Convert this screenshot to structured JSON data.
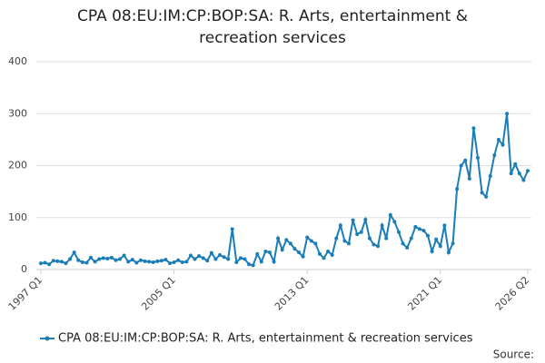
{
  "chart_data": {
    "type": "line",
    "title": "CPA 08:EU:IM:CP:BOP:SA: R. Arts, entertainment & recreation services",
    "source": "Source:",
    "categories": [
      "1997 Q1",
      null,
      null,
      null,
      null,
      null,
      null,
      null,
      null,
      null,
      null,
      null,
      null,
      null,
      null,
      null,
      null,
      null,
      null,
      null,
      null,
      null,
      null,
      null,
      null,
      null,
      null,
      null,
      null,
      null,
      null,
      null,
      "2005 Q1",
      null,
      null,
      null,
      null,
      null,
      null,
      null,
      null,
      null,
      null,
      null,
      null,
      null,
      null,
      null,
      null,
      null,
      null,
      null,
      null,
      null,
      null,
      null,
      null,
      null,
      null,
      null,
      null,
      null,
      null,
      null,
      "2013 Q1",
      null,
      null,
      null,
      null,
      null,
      null,
      null,
      null,
      null,
      null,
      null,
      null,
      null,
      null,
      null,
      null,
      null,
      null,
      null,
      null,
      null,
      null,
      null,
      null,
      null,
      null,
      null,
      null,
      null,
      null,
      null,
      "2021 Q1",
      null,
      null,
      null,
      null,
      null,
      null,
      null,
      null,
      null,
      null,
      null,
      null,
      null,
      null,
      null,
      null,
      null,
      null,
      null,
      null,
      "2026 Q2"
    ],
    "series": [
      {
        "name": "CPA 08:EU:IM:CP:BOP:SA: R. Arts, entertainment & recreation services",
        "color": "#1a7db8",
        "values": [
          12,
          13,
          10,
          17,
          16,
          15,
          12,
          20,
          33,
          18,
          14,
          13,
          23,
          15,
          20,
          22,
          21,
          23,
          18,
          20,
          27,
          15,
          19,
          13,
          18,
          16,
          15,
          14,
          16,
          17,
          19,
          12,
          14,
          18,
          14,
          15,
          27,
          20,
          26,
          22,
          17,
          32,
          20,
          28,
          24,
          20,
          78,
          14,
          22,
          20,
          10,
          8,
          30,
          15,
          35,
          33,
          15,
          60,
          38,
          57,
          50,
          40,
          33,
          25,
          62,
          55,
          50,
          30,
          22,
          35,
          28,
          60,
          85,
          55,
          50,
          95,
          68,
          72,
          96,
          60,
          48,
          45,
          85,
          60,
          105,
          92,
          72,
          50,
          42,
          60,
          82,
          78,
          75,
          65,
          35,
          58,
          45,
          85,
          33,
          50,
          155,
          200,
          210,
          175,
          272,
          215,
          148,
          140,
          180,
          220,
          250,
          240,
          300,
          185,
          203,
          185,
          172,
          190
        ]
      }
    ],
    "ylim": [
      0,
      400
    ],
    "yticks": [
      0,
      100,
      200,
      300,
      400
    ],
    "grid": true
  }
}
